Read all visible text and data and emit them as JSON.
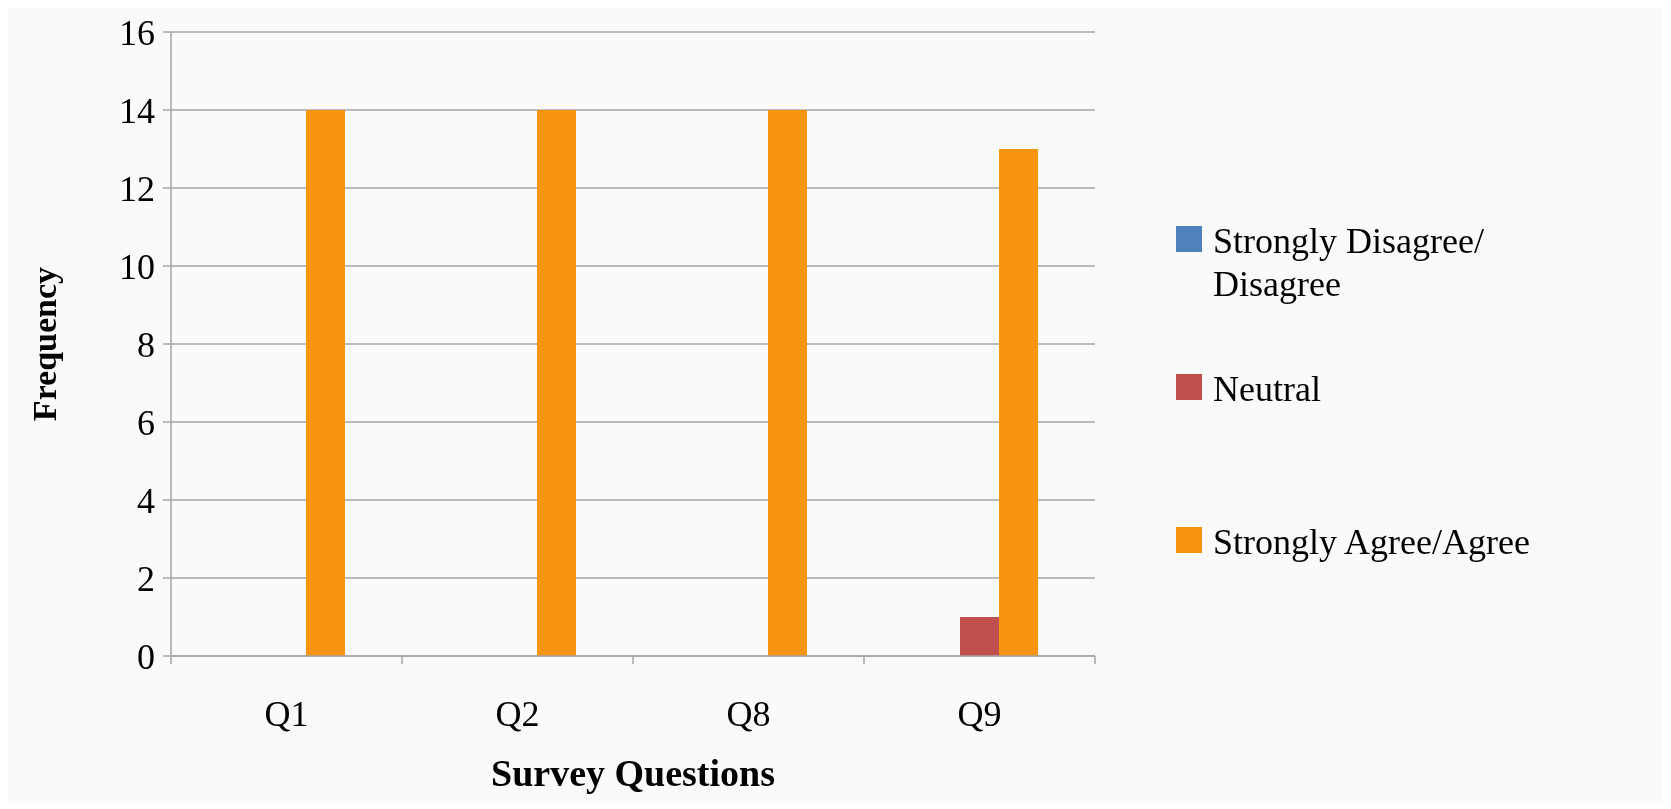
{
  "chart_data": {
    "type": "bar",
    "xlabel": "Survey Questions",
    "ylabel": "Frequency",
    "categories": [
      "Q1",
      "Q2",
      "Q8",
      "Q9"
    ],
    "series": [
      {
        "name": "Strongly Disagree/Disagree",
        "color": "#4f81bd",
        "values": [
          0,
          0,
          0,
          0
        ]
      },
      {
        "name": "Neutral",
        "color": "#c0504d",
        "values": [
          0,
          0,
          0,
          1
        ]
      },
      {
        "name": "Strongly Agree/Agree",
        "color": "#f79410",
        "values": [
          14,
          14,
          14,
          13
        ]
      }
    ],
    "ylim": [
      0,
      16
    ],
    "yticks": [
      0,
      2,
      4,
      6,
      8,
      10,
      12,
      14,
      16
    ],
    "grid": "y",
    "legend": "right"
  }
}
